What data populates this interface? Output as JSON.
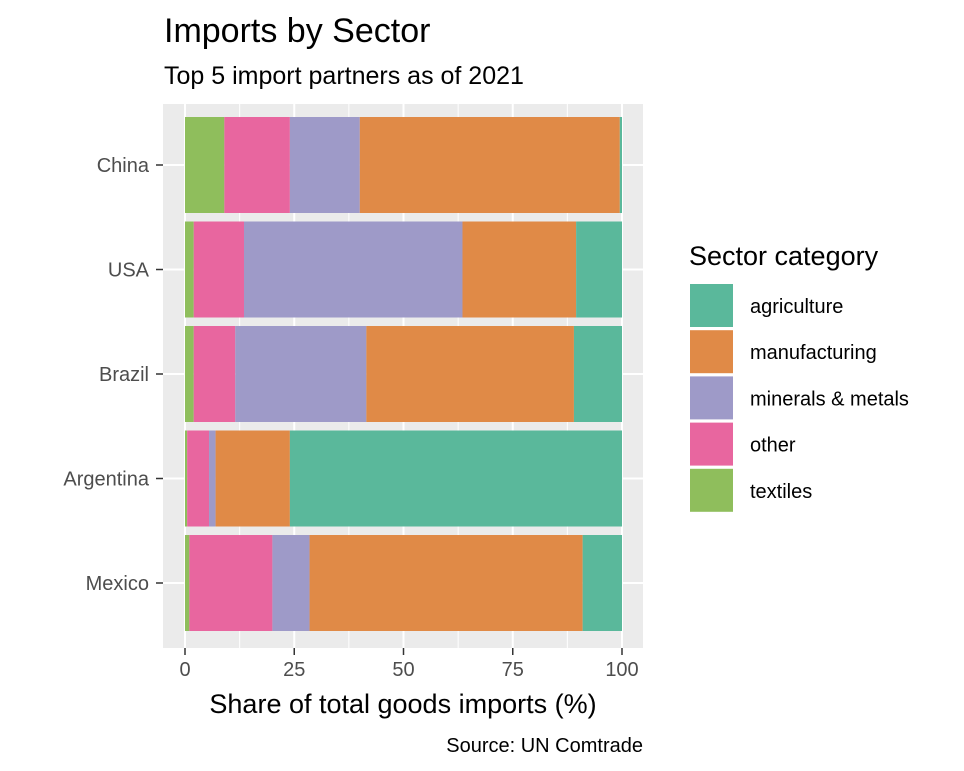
{
  "chart_data": {
    "type": "bar",
    "orientation": "horizontal",
    "stacked": true,
    "title": "Imports by Sector",
    "subtitle": "Top 5 import partners as of 2021",
    "xlabel": "Share of total goods imports (%)",
    "ylabel": "",
    "caption": "Source: UN Comtrade",
    "xlim": [
      0,
      100
    ],
    "xticks": [
      "0",
      "25",
      "50",
      "75",
      "100"
    ],
    "categories": [
      "China",
      "USA",
      "Brazil",
      "Argentina",
      "Mexico"
    ],
    "legend_title": "Sector category",
    "legend_position": "right",
    "series": [
      {
        "name": "textiles",
        "color": "#8fbe5c",
        "values": [
          9,
          2,
          2,
          0.5,
          1
        ]
      },
      {
        "name": "other",
        "color": "#e8669f",
        "values": [
          15,
          11.5,
          9.5,
          5,
          19
        ]
      },
      {
        "name": "minerals & metals",
        "color": "#9e9ac8",
        "values": [
          16,
          50,
          30,
          1.5,
          8.5
        ]
      },
      {
        "name": "manufacturing",
        "color": "#e08a47",
        "values": [
          59.5,
          26,
          47.5,
          17,
          62.5
        ]
      },
      {
        "name": "agriculture",
        "color": "#5ab89b",
        "values": [
          0.5,
          10.5,
          11,
          76,
          9
        ]
      }
    ],
    "legend_order": [
      "agriculture",
      "manufacturing",
      "minerals & metals",
      "other",
      "textiles"
    ]
  }
}
